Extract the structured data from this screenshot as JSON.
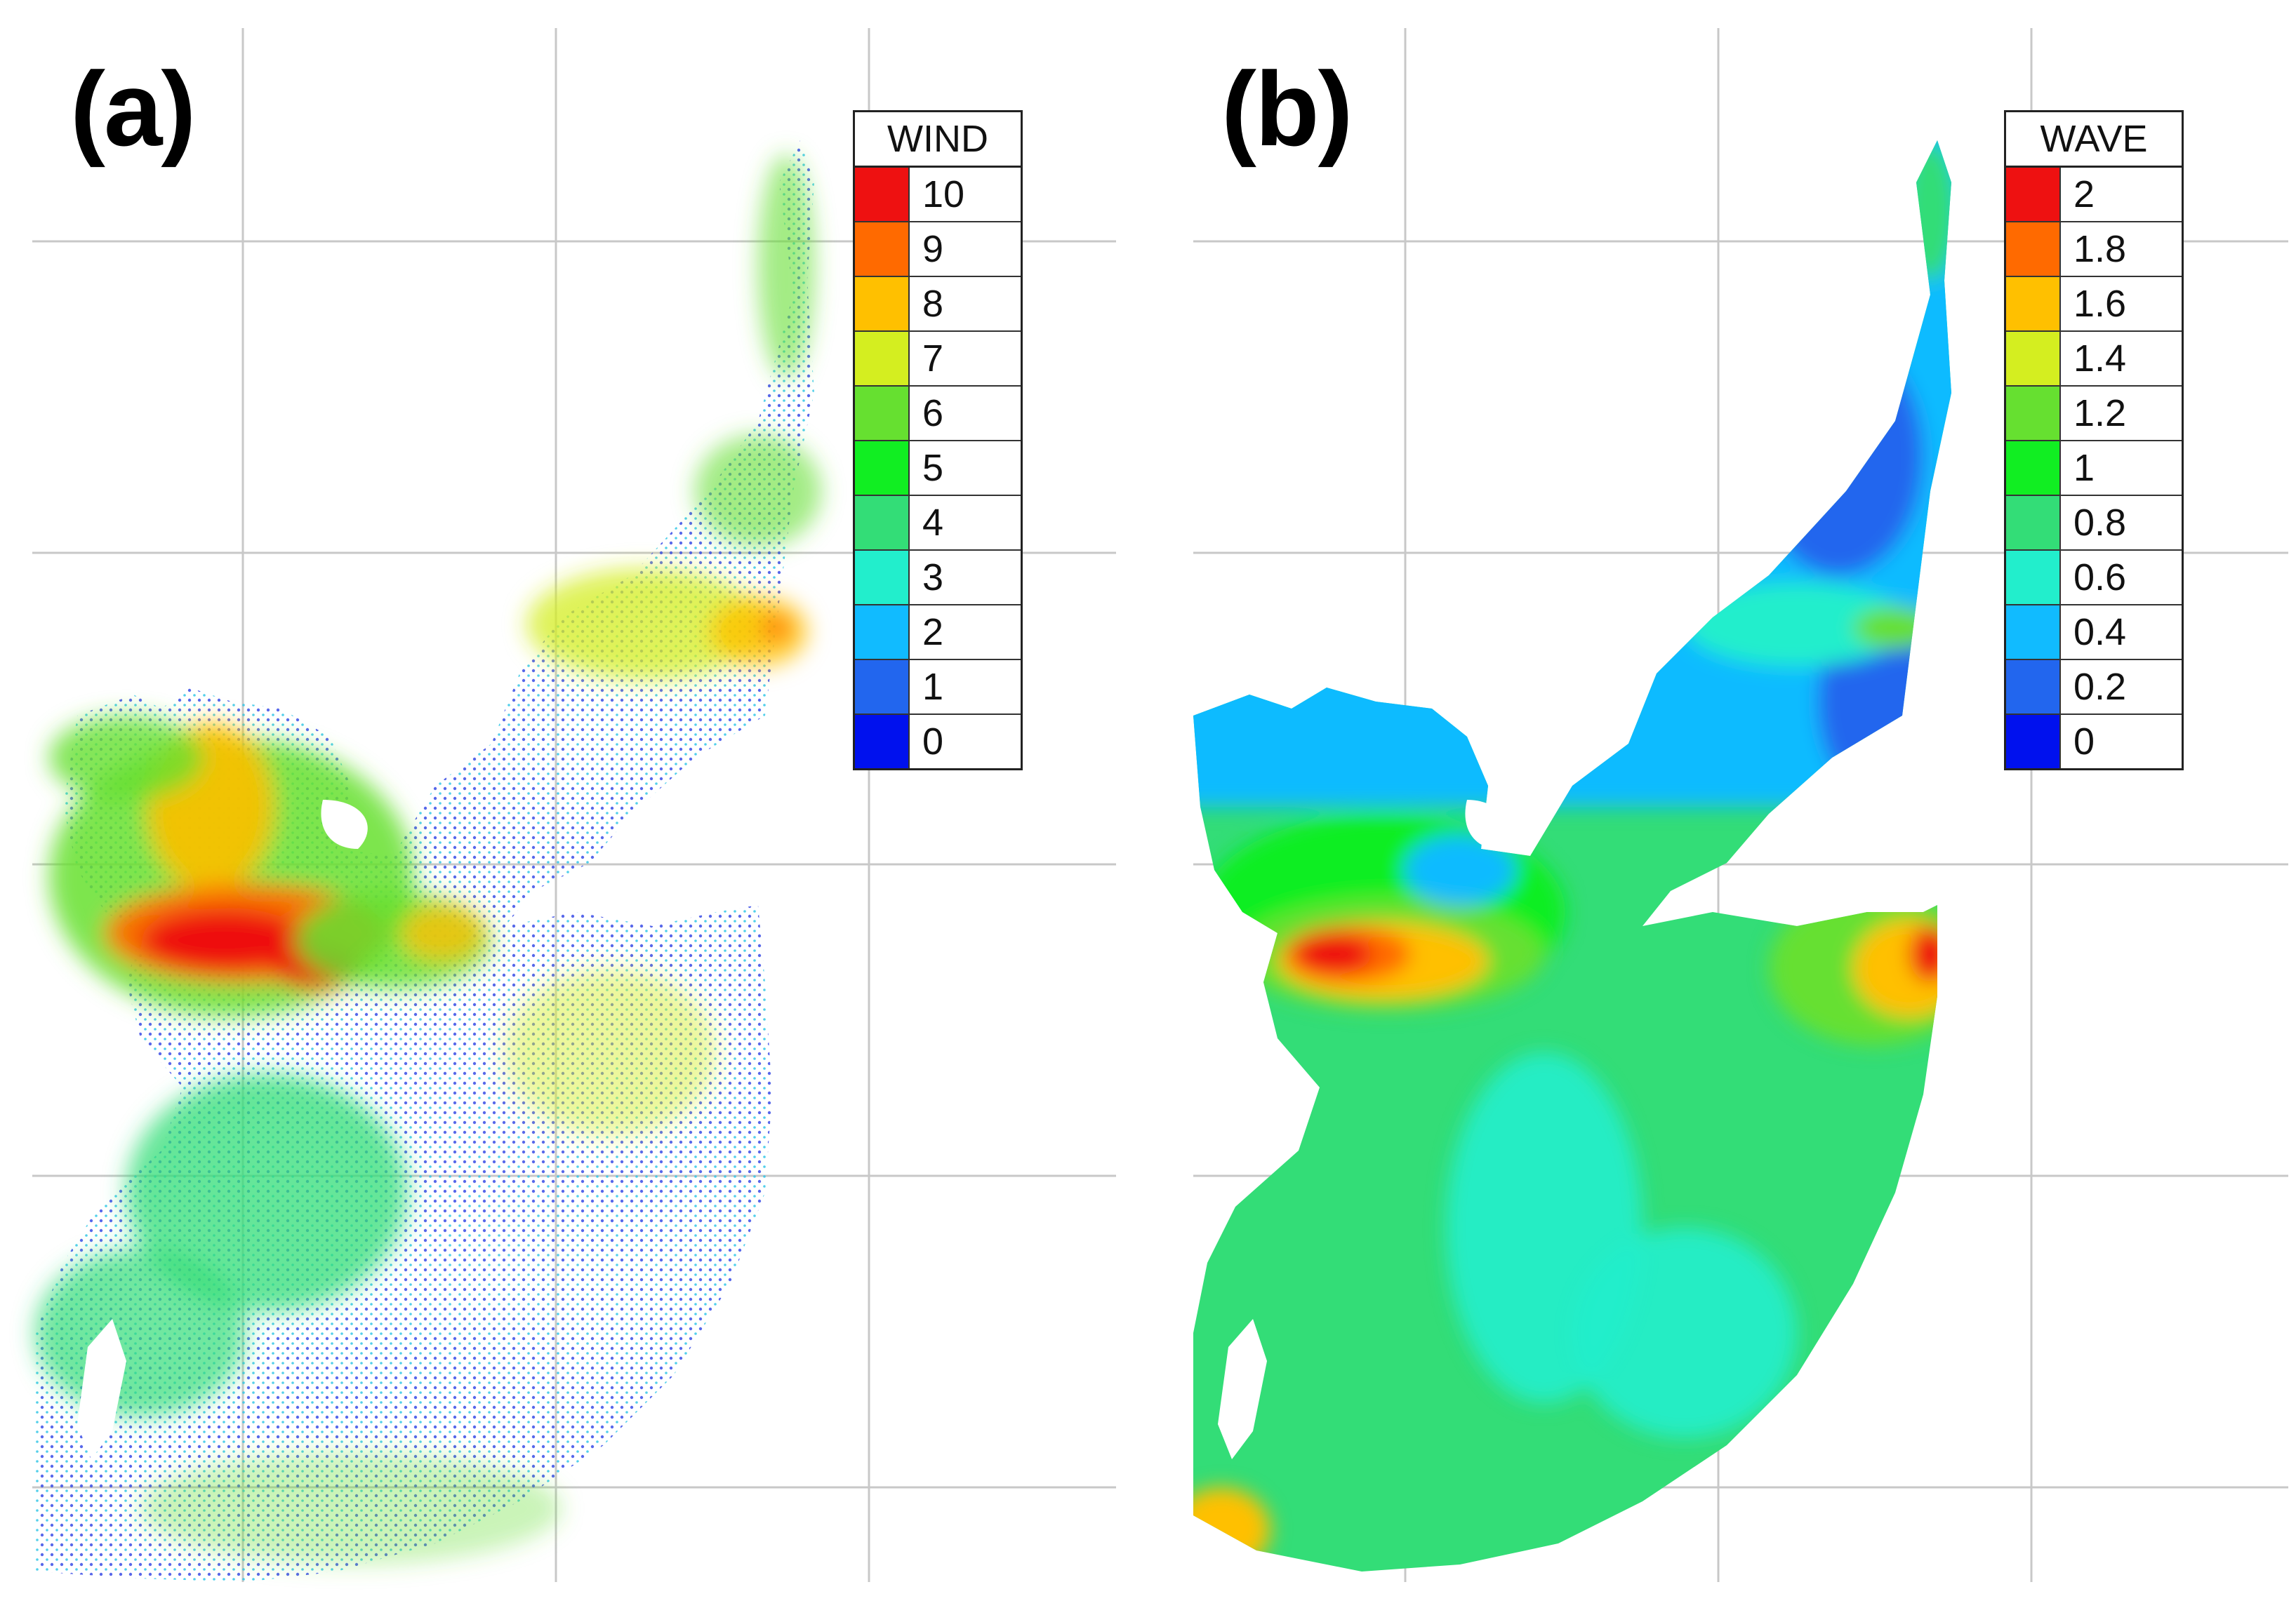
{
  "panels": {
    "a": {
      "label": "(a)",
      "legend_title": "WIND",
      "legend_values": [
        "10",
        "9",
        "8",
        "7",
        "6",
        "5",
        "4",
        "3",
        "2",
        "1",
        "0"
      ]
    },
    "b": {
      "label": "(b)",
      "legend_title": "WAVE",
      "legend_values": [
        "2",
        "1.8",
        "1.6",
        "1.4",
        "1.2",
        "1",
        "0.8",
        "0.6",
        "0.4",
        "0.2",
        "0"
      ]
    }
  },
  "colors": {
    "scale": [
      "#ee1111",
      "#ff6a00",
      "#ffc000",
      "#d4ee20",
      "#66e030",
      "#11ee22",
      "#33dd77",
      "#22eecc",
      "#11bbff",
      "#2266ee",
      "#0011ee"
    ],
    "grid": "#c8c8c8"
  }
}
